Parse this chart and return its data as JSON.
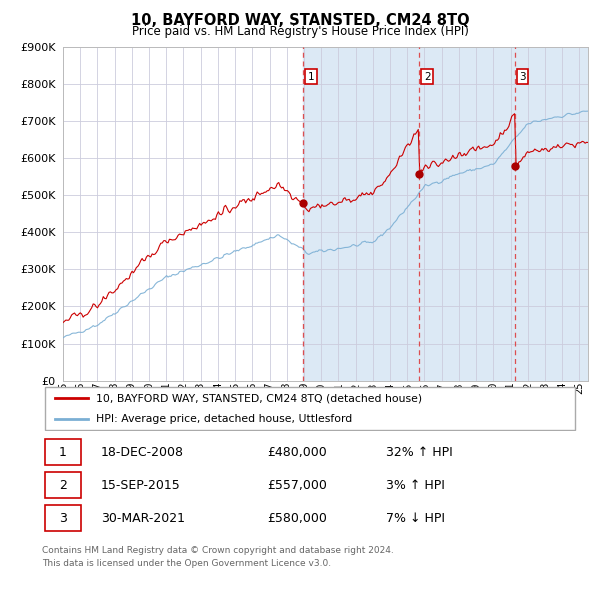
{
  "title": "10, BAYFORD WAY, STANSTED, CM24 8TQ",
  "subtitle": "Price paid vs. HM Land Registry's House Price Index (HPI)",
  "legend_property": "10, BAYFORD WAY, STANSTED, CM24 8TQ (detached house)",
  "legend_hpi": "HPI: Average price, detached house, Uttlesford",
  "footer1": "Contains HM Land Registry data © Crown copyright and database right 2024.",
  "footer2": "This data is licensed under the Open Government Licence v3.0.",
  "transactions": [
    {
      "num": 1,
      "date": "18-DEC-2008",
      "price": 480000,
      "pct": "32%",
      "dir": "↑"
    },
    {
      "num": 2,
      "date": "15-SEP-2015",
      "price": 557000,
      "pct": "3%",
      "dir": "↑"
    },
    {
      "num": 3,
      "date": "30-MAR-2021",
      "price": 580000,
      "pct": "7%",
      "dir": "↓"
    }
  ],
  "sale_dates_decimal": [
    2008.96,
    2015.71,
    2021.25
  ],
  "sale_prices": [
    480000,
    557000,
    580000
  ],
  "ylim": [
    0,
    900000
  ],
  "yticks": [
    0,
    100000,
    200000,
    300000,
    400000,
    500000,
    600000,
    700000,
    800000,
    900000
  ],
  "property_color": "#cc0000",
  "hpi_color": "#7bafd4",
  "background_color": "#dce9f5",
  "grid_color": "#ccccdd",
  "start_year": 1995,
  "end_year": 2025.5
}
